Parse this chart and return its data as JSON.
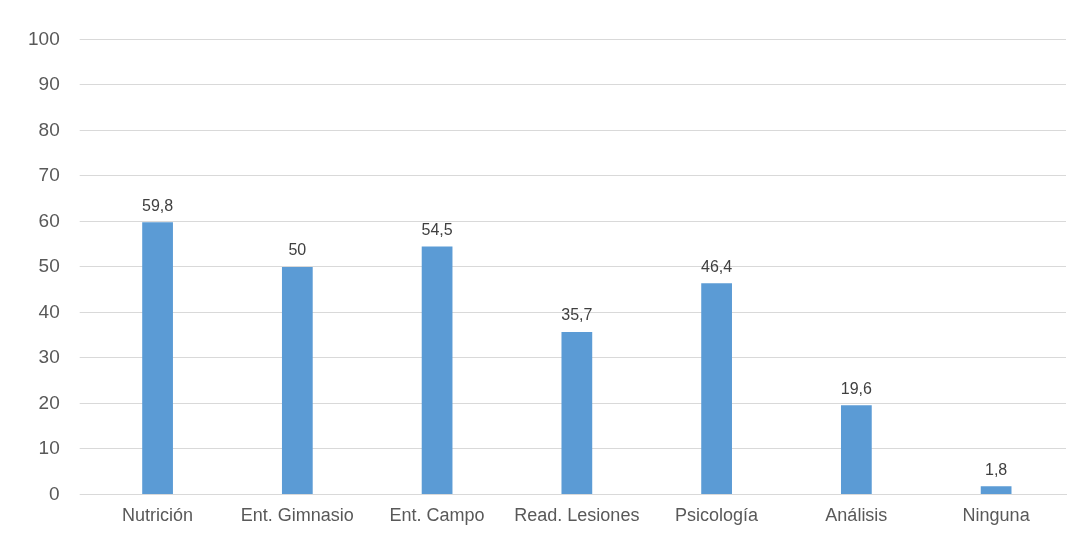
{
  "chart_data": {
    "type": "bar",
    "categories": [
      "Nutrición",
      "Ent. Gimnasio",
      "Ent. Campo",
      "Read. Lesiones",
      "Psicología",
      "Análisis",
      "Ninguna"
    ],
    "values": [
      59.8,
      50,
      54.5,
      35.7,
      46.4,
      19.6,
      1.8
    ],
    "color": "#5b9bd5",
    "ylim": [
      0,
      100
    ],
    "yticks": [
      0,
      10,
      20,
      30,
      40,
      50,
      60,
      70,
      80,
      90,
      100
    ],
    "grid": "y",
    "value_labels": [
      "59,8",
      "50",
      "54,5",
      "35,7",
      "46,4",
      "19,6",
      "1,8"
    ]
  }
}
